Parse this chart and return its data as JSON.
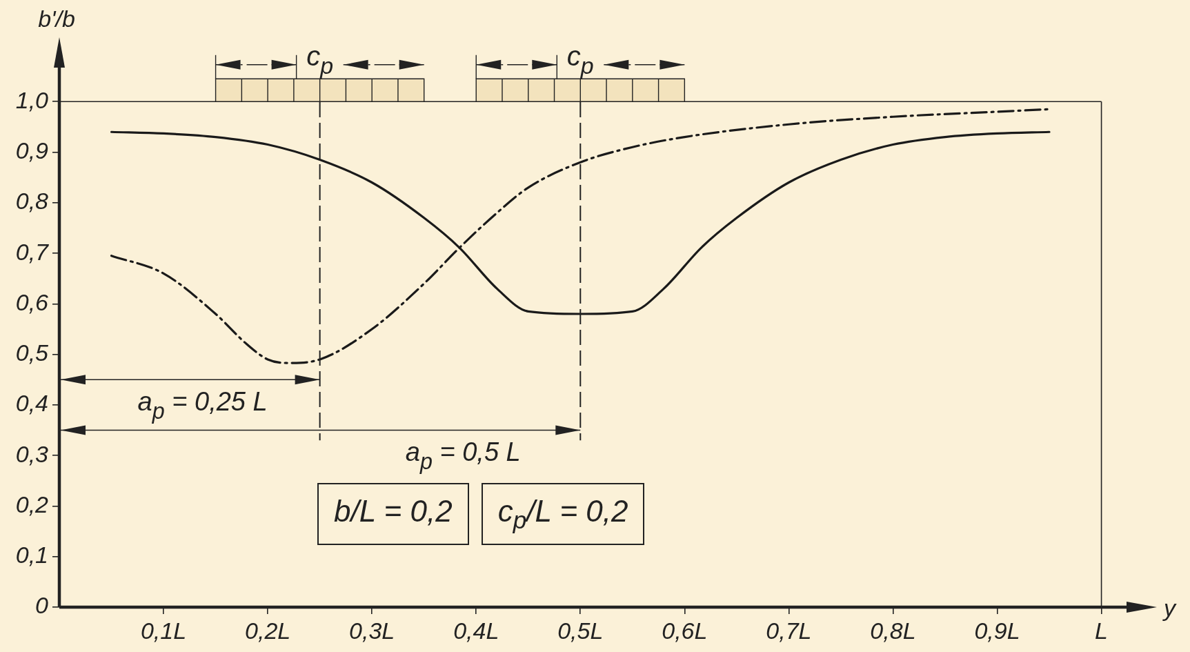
{
  "chart_data": {
    "type": "line",
    "ylabel": "b'/b",
    "xlabel": "y",
    "xlim": [
      0,
      1.04
    ],
    "ylim": [
      0,
      1.1
    ],
    "xticks": [
      {
        "value": 0.1,
        "label": "0,1L"
      },
      {
        "value": 0.2,
        "label": "0,2L"
      },
      {
        "value": 0.3,
        "label": "0,3L"
      },
      {
        "value": 0.4,
        "label": "0,4L"
      },
      {
        "value": 0.5,
        "label": "0,5L"
      },
      {
        "value": 0.6,
        "label": "0,6L"
      },
      {
        "value": 0.7,
        "label": "0,7L"
      },
      {
        "value": 0.8,
        "label": "0,8L"
      },
      {
        "value": 0.9,
        "label": "0,9L"
      },
      {
        "value": 1,
        "label": "L"
      }
    ],
    "yticks": [
      {
        "value": 0,
        "label": "0"
      },
      {
        "value": 0.1,
        "label": "0,1"
      },
      {
        "value": 0.2,
        "label": "0,2"
      },
      {
        "value": 0.3,
        "label": "0,3"
      },
      {
        "value": 0.4,
        "label": "0,4"
      },
      {
        "value": 0.5,
        "label": "0,5"
      },
      {
        "value": 0.6,
        "label": "0,6"
      },
      {
        "value": 0.7,
        "label": "0,7"
      },
      {
        "value": 0.8,
        "label": "0,8"
      },
      {
        "value": 0.9,
        "label": "0,9"
      },
      {
        "value": 1,
        "label": "1,0"
      }
    ],
    "series": [
      {
        "color": "#1a1a1a",
        "line_style": "solid",
        "x": [
          0.05,
          0.1,
          0.15,
          0.2,
          0.25,
          0.3,
          0.35,
          0.384,
          0.42,
          0.45,
          0.5,
          0.55,
          0.58,
          0.616,
          0.65,
          0.7,
          0.75,
          0.8,
          0.85,
          0.9,
          0.95
        ],
        "values": [
          0.94,
          0.937,
          0.93,
          0.915,
          0.885,
          0.84,
          0.77,
          0.711,
          0.63,
          0.585,
          0.58,
          0.585,
          0.63,
          0.711,
          0.77,
          0.84,
          0.885,
          0.915,
          0.93,
          0.937,
          0.94
        ]
      },
      {
        "color": "#1a1a1a",
        "line_style": "dashed",
        "x": [
          0.05,
          0.1,
          0.15,
          0.18,
          0.2,
          0.22,
          0.25,
          0.3,
          0.35,
          0.384,
          0.42,
          0.45,
          0.5,
          0.55,
          0.6,
          0.7,
          0.8,
          0.9,
          0.95
        ],
        "values": [
          0.695,
          0.66,
          0.58,
          0.52,
          0.49,
          0.483,
          0.49,
          0.55,
          0.64,
          0.711,
          0.78,
          0.83,
          0.88,
          0.91,
          0.93,
          0.955,
          0.97,
          0.98,
          0.985
        ]
      }
    ],
    "ref_lines": [
      {
        "axis": "y",
        "value": 1,
        "line_style": "solid"
      },
      {
        "axis": "x",
        "value": 1,
        "line_style": "solid"
      },
      {
        "axis": "x",
        "value": 0.25,
        "line_style": "dashed"
      },
      {
        "axis": "x",
        "value": 0.5,
        "line_style": "dashed"
      }
    ],
    "bands": [
      {
        "axis": "x",
        "from": 0.15,
        "to": 0.35,
        "label": "c$_{p}$",
        "color": "#f3e3bd"
      },
      {
        "axis": "x",
        "from": 0.4,
        "to": 0.6,
        "label": "c$_{p}$",
        "color": "#f3e3bd"
      }
    ],
    "annotations": [
      {
        "text": "a$_{p}$ = 0,25 L",
        "x": 0.25,
        "y": 0.45
      },
      {
        "text": "a$_{p}$ = 0,5 L",
        "x": 0.5,
        "y": 0.35
      },
      "b/L = 0,2",
      "c$_{p}$/L = 0,2"
    ],
    "grid": false,
    "legend": false,
    "marker": "none"
  }
}
